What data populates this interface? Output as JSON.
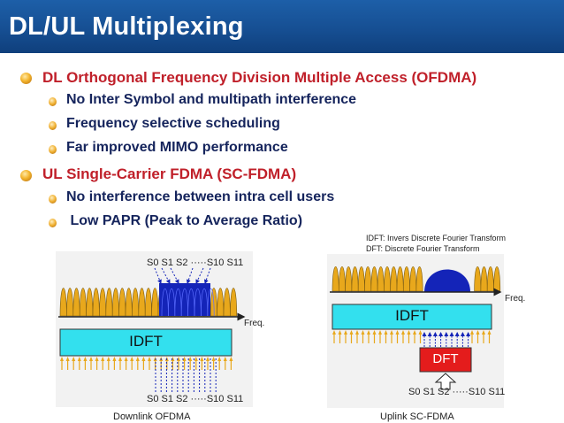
{
  "title": "DL/UL Multiplexing",
  "bullets": [
    {
      "level": 1,
      "text": "DL Orthogonal Frequency Division Multiple Access (OFDMA)"
    },
    {
      "level": 2,
      "text": "No Inter Symbol and multipath interference"
    },
    {
      "level": 2,
      "text": "Frequency selective scheduling"
    },
    {
      "level": 2,
      "text": "Far improved MIMO performance"
    },
    {
      "level": 1,
      "text": "UL Single-Carrier FDMA (SC-FDMA)"
    },
    {
      "level": 2,
      "text": "No interference between intra cell users"
    },
    {
      "level": 2,
      "text": " Low PAPR (Peak to Average Ratio)"
    }
  ],
  "notes": {
    "idft": "IDFT: Invers Discrete Fourier Transform",
    "dft": "DFT: Discrete Fourier Transform"
  },
  "downlink": {
    "caption": "Downlink OFDMA",
    "freq_label": "Freq.",
    "block_label": "IDFT",
    "top_symbols": "S0 S1 S2 ·····S10 S11",
    "bottom_symbols": "S0 S1 S2 ·····S10 S11"
  },
  "uplink": {
    "caption": "Uplink SC-FDMA",
    "freq_label": "Freq.",
    "idft_label": "IDFT",
    "dft_label": "DFT",
    "symbols": "S0 S1 S2 ·····S10 S11"
  },
  "colors": {
    "title_bg": "#1a5aa0",
    "heading_red": "#c0202a",
    "body_navy": "#15245c",
    "subcarrier_gold": "#e8a81c",
    "user_blue": "#1424b8",
    "block_cyan": "#33e0ee",
    "dft_red": "#e41c1c"
  }
}
